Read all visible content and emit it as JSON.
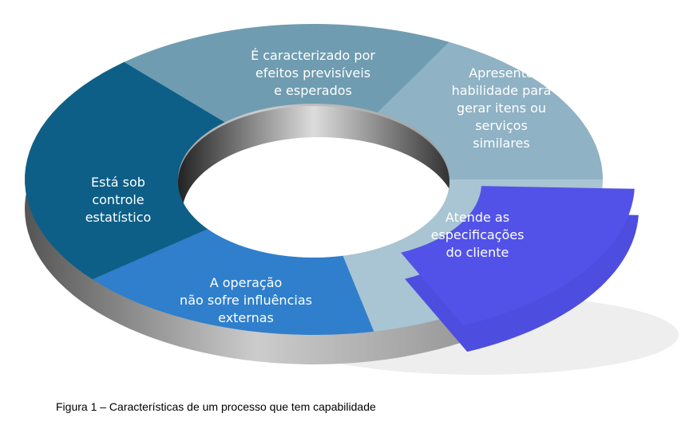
{
  "nodes": [
    {
      "lines": [
        "É caracterizado por",
        "efeitos previsíveis",
        "e esperados"
      ]
    },
    {
      "lines": [
        "Apresenta",
        "habilidade para",
        "gerar itens ou",
        "serviços",
        "similares"
      ]
    },
    {
      "lines": [
        "Atende as",
        "especificações",
        "do cliente"
      ]
    },
    {
      "lines": [
        "A operação",
        "não sofre influências",
        "externas"
      ]
    },
    {
      "lines": [
        "Está sob",
        "controle",
        "estatístico"
      ]
    }
  ],
  "caption": "Figura 1 – Características de um processo que tem capabilidade"
}
